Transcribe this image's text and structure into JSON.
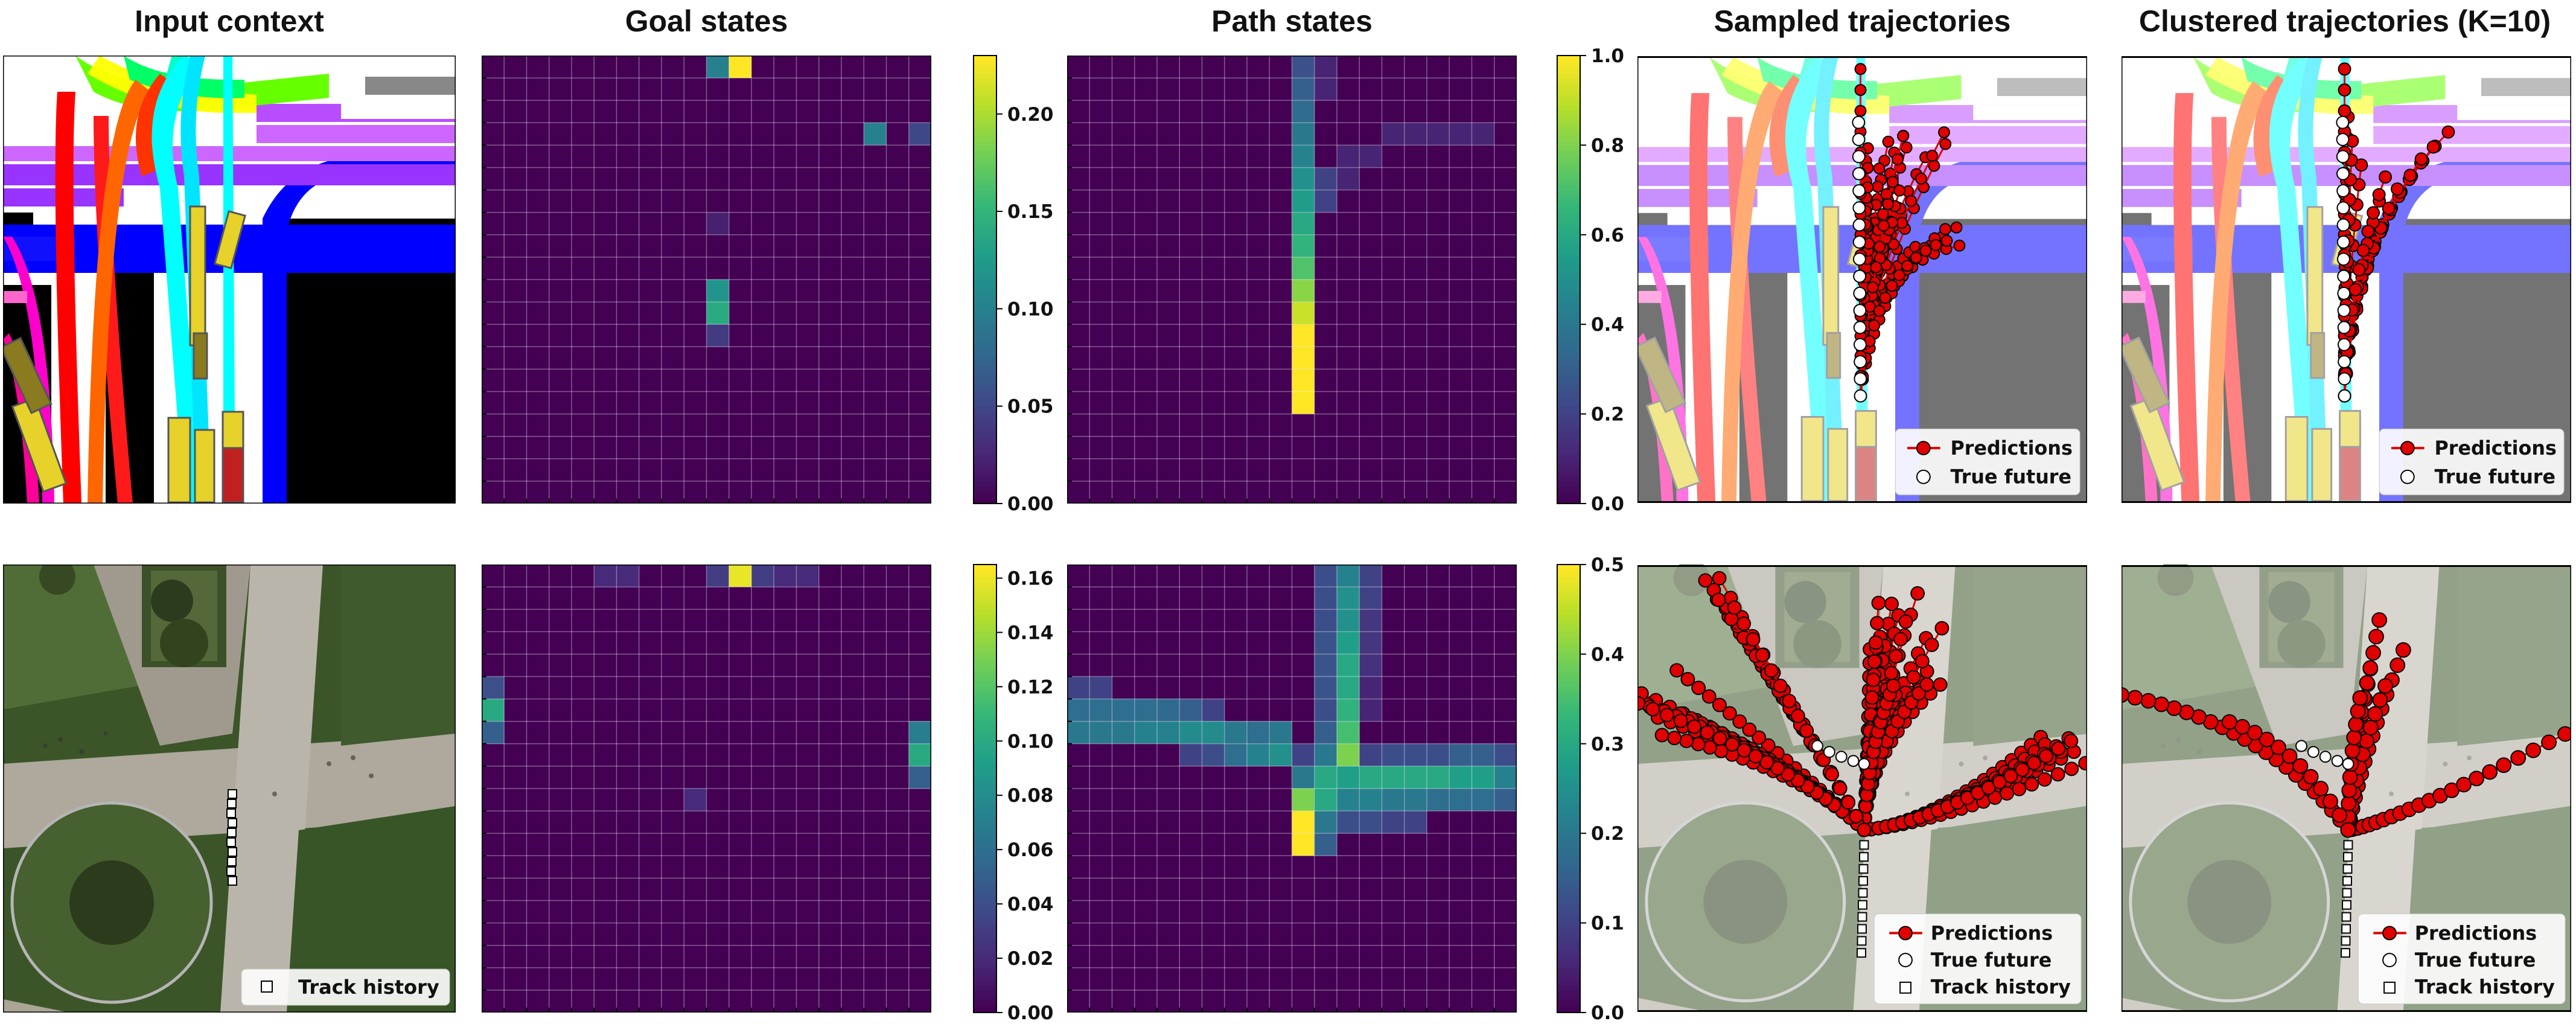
{
  "titles": {
    "input": "Input context",
    "goal": "Goal states",
    "path": "Path states",
    "sampled": "Sampled trajectories",
    "clustered": "Clustered trajectories (K=10)"
  },
  "legend": {
    "predictions": "Predictions",
    "true_future": "True future",
    "track_history": "Track history"
  },
  "colors": {
    "prediction": "#e00000",
    "grid_bg": "#440154",
    "viridis": [
      "#440154",
      "#482878",
      "#3e4989",
      "#31688e",
      "#26828e",
      "#1f9e89",
      "#35b779",
      "#6ece58",
      "#b5de2b",
      "#fde725"
    ]
  },
  "chart_data": [
    {
      "type": "heatmap",
      "title": "Goal states",
      "row": 1,
      "grid": [
        20,
        20
      ],
      "colorbar": {
        "range": [
          0,
          0.23
        ],
        "ticks": [
          "0.00",
          "0.05",
          "0.10",
          "0.15",
          "0.20"
        ]
      },
      "cells": [
        [
          0,
          10,
          0.1
        ],
        [
          0,
          11,
          0.23
        ],
        [
          3,
          17,
          0.1
        ],
        [
          3,
          19,
          0.05
        ],
        [
          7,
          10,
          0.02
        ],
        [
          10,
          10,
          0.12
        ],
        [
          11,
          10,
          0.14
        ],
        [
          12,
          10,
          0.04
        ]
      ]
    },
    {
      "type": "heatmap",
      "title": "Path states",
      "row": 1,
      "grid": [
        20,
        20
      ],
      "colorbar": {
        "range": [
          0,
          1.0
        ],
        "ticks": [
          "0.0",
          "0.2",
          "0.4",
          "0.6",
          "0.8",
          "1.0"
        ]
      },
      "cells": [
        [
          0,
          10,
          0.25
        ],
        [
          0,
          11,
          0.1
        ],
        [
          1,
          10,
          0.3
        ],
        [
          2,
          10,
          0.35
        ],
        [
          3,
          10,
          0.4
        ],
        [
          4,
          10,
          0.45
        ],
        [
          5,
          10,
          0.5
        ],
        [
          6,
          10,
          0.55
        ],
        [
          7,
          10,
          0.6
        ],
        [
          8,
          10,
          0.65
        ],
        [
          9,
          10,
          0.72
        ],
        [
          10,
          10,
          0.82
        ],
        [
          11,
          10,
          0.92
        ],
        [
          12,
          10,
          1.0
        ],
        [
          13,
          10,
          1.0
        ],
        [
          14,
          10,
          1.0
        ],
        [
          15,
          10,
          1.0
        ],
        [
          3,
          14,
          0.1
        ],
        [
          3,
          15,
          0.1
        ],
        [
          3,
          16,
          0.1
        ],
        [
          3,
          17,
          0.1
        ],
        [
          3,
          18,
          0.1
        ],
        [
          4,
          13,
          0.1
        ],
        [
          4,
          12,
          0.1
        ],
        [
          5,
          12,
          0.1
        ],
        [
          5,
          11,
          0.2
        ],
        [
          6,
          11,
          0.2
        ],
        [
          1,
          11,
          0.1
        ]
      ]
    },
    {
      "type": "heatmap",
      "title": "Goal states",
      "row": 2,
      "grid": [
        20,
        20
      ],
      "colorbar": {
        "range": [
          0,
          0.165
        ],
        "ticks": [
          "0.00",
          "0.02",
          "0.04",
          "0.06",
          "0.08",
          "0.10",
          "0.12",
          "0.14",
          "0.16"
        ]
      },
      "cells": [
        [
          0,
          5,
          0.02
        ],
        [
          0,
          6,
          0.02
        ],
        [
          0,
          10,
          0.03
        ],
        [
          0,
          11,
          0.16
        ],
        [
          0,
          12,
          0.03
        ],
        [
          0,
          13,
          0.02
        ],
        [
          0,
          14,
          0.02
        ],
        [
          5,
          0,
          0.04
        ],
        [
          6,
          0,
          0.1
        ],
        [
          7,
          0,
          0.05
        ],
        [
          7,
          19,
          0.07
        ],
        [
          8,
          19,
          0.1
        ],
        [
          9,
          19,
          0.05
        ],
        [
          10,
          9,
          0.02
        ]
      ]
    },
    {
      "type": "heatmap",
      "title": "Path states",
      "row": 2,
      "grid": [
        20,
        20
      ],
      "colorbar": {
        "range": [
          0,
          0.5
        ],
        "ticks": [
          "0.0",
          "0.1",
          "0.2",
          "0.3",
          "0.4",
          "0.5"
        ]
      },
      "cells": [
        [
          0,
          11,
          0.12
        ],
        [
          0,
          12,
          0.22
        ],
        [
          0,
          13,
          0.1
        ],
        [
          1,
          11,
          0.12
        ],
        [
          1,
          12,
          0.25
        ],
        [
          1,
          13,
          0.1
        ],
        [
          2,
          11,
          0.12
        ],
        [
          2,
          12,
          0.25
        ],
        [
          2,
          13,
          0.08
        ],
        [
          3,
          11,
          0.13
        ],
        [
          3,
          12,
          0.28
        ],
        [
          3,
          13,
          0.08
        ],
        [
          4,
          11,
          0.13
        ],
        [
          4,
          12,
          0.3
        ],
        [
          4,
          13,
          0.07
        ],
        [
          5,
          11,
          0.13
        ],
        [
          5,
          12,
          0.3
        ],
        [
          5,
          13,
          0.05
        ],
        [
          6,
          11,
          0.12
        ],
        [
          6,
          12,
          0.32
        ],
        [
          6,
          13,
          0.05
        ],
        [
          7,
          11,
          0.15
        ],
        [
          7,
          12,
          0.35
        ],
        [
          8,
          10,
          0.1
        ],
        [
          8,
          11,
          0.2
        ],
        [
          8,
          12,
          0.4
        ],
        [
          9,
          10,
          0.2
        ],
        [
          9,
          11,
          0.3
        ],
        [
          10,
          10,
          0.4
        ],
        [
          10,
          11,
          0.3
        ],
        [
          11,
          10,
          0.5
        ],
        [
          11,
          11,
          0.2
        ],
        [
          12,
          10,
          0.5
        ],
        [
          12,
          11,
          0.15
        ],
        [
          5,
          0,
          0.1
        ],
        [
          5,
          1,
          0.1
        ],
        [
          6,
          0,
          0.18
        ],
        [
          6,
          1,
          0.18
        ],
        [
          6,
          2,
          0.18
        ],
        [
          6,
          3,
          0.18
        ],
        [
          6,
          4,
          0.17
        ],
        [
          6,
          5,
          0.15
        ],
        [
          6,
          6,
          0.1
        ],
        [
          7,
          0,
          0.2
        ],
        [
          7,
          1,
          0.2
        ],
        [
          7,
          2,
          0.2
        ],
        [
          7,
          3,
          0.22
        ],
        [
          7,
          4,
          0.22
        ],
        [
          7,
          5,
          0.24
        ],
        [
          7,
          6,
          0.24
        ],
        [
          7,
          7,
          0.2
        ],
        [
          7,
          8,
          0.18
        ],
        [
          7,
          9,
          0.2
        ],
        [
          8,
          5,
          0.1
        ],
        [
          8,
          6,
          0.12
        ],
        [
          8,
          7,
          0.18
        ],
        [
          8,
          8,
          0.22
        ],
        [
          8,
          9,
          0.25
        ],
        [
          8,
          13,
          0.1
        ],
        [
          8,
          14,
          0.12
        ],
        [
          8,
          15,
          0.12
        ],
        [
          8,
          16,
          0.12
        ],
        [
          8,
          17,
          0.15
        ],
        [
          8,
          18,
          0.15
        ],
        [
          8,
          19,
          0.12
        ],
        [
          9,
          12,
          0.28
        ],
        [
          9,
          13,
          0.3
        ],
        [
          9,
          14,
          0.3
        ],
        [
          9,
          15,
          0.3
        ],
        [
          9,
          16,
          0.3
        ],
        [
          9,
          17,
          0.28
        ],
        [
          9,
          18,
          0.28
        ],
        [
          9,
          19,
          0.22
        ],
        [
          10,
          12,
          0.22
        ],
        [
          10,
          13,
          0.22
        ],
        [
          10,
          14,
          0.2
        ],
        [
          10,
          15,
          0.2
        ],
        [
          10,
          16,
          0.18
        ],
        [
          10,
          17,
          0.18
        ],
        [
          10,
          18,
          0.18
        ],
        [
          10,
          19,
          0.15
        ],
        [
          11,
          12,
          0.12
        ],
        [
          11,
          13,
          0.12
        ],
        [
          11,
          14,
          0.1
        ],
        [
          11,
          15,
          0.1
        ]
      ]
    }
  ]
}
